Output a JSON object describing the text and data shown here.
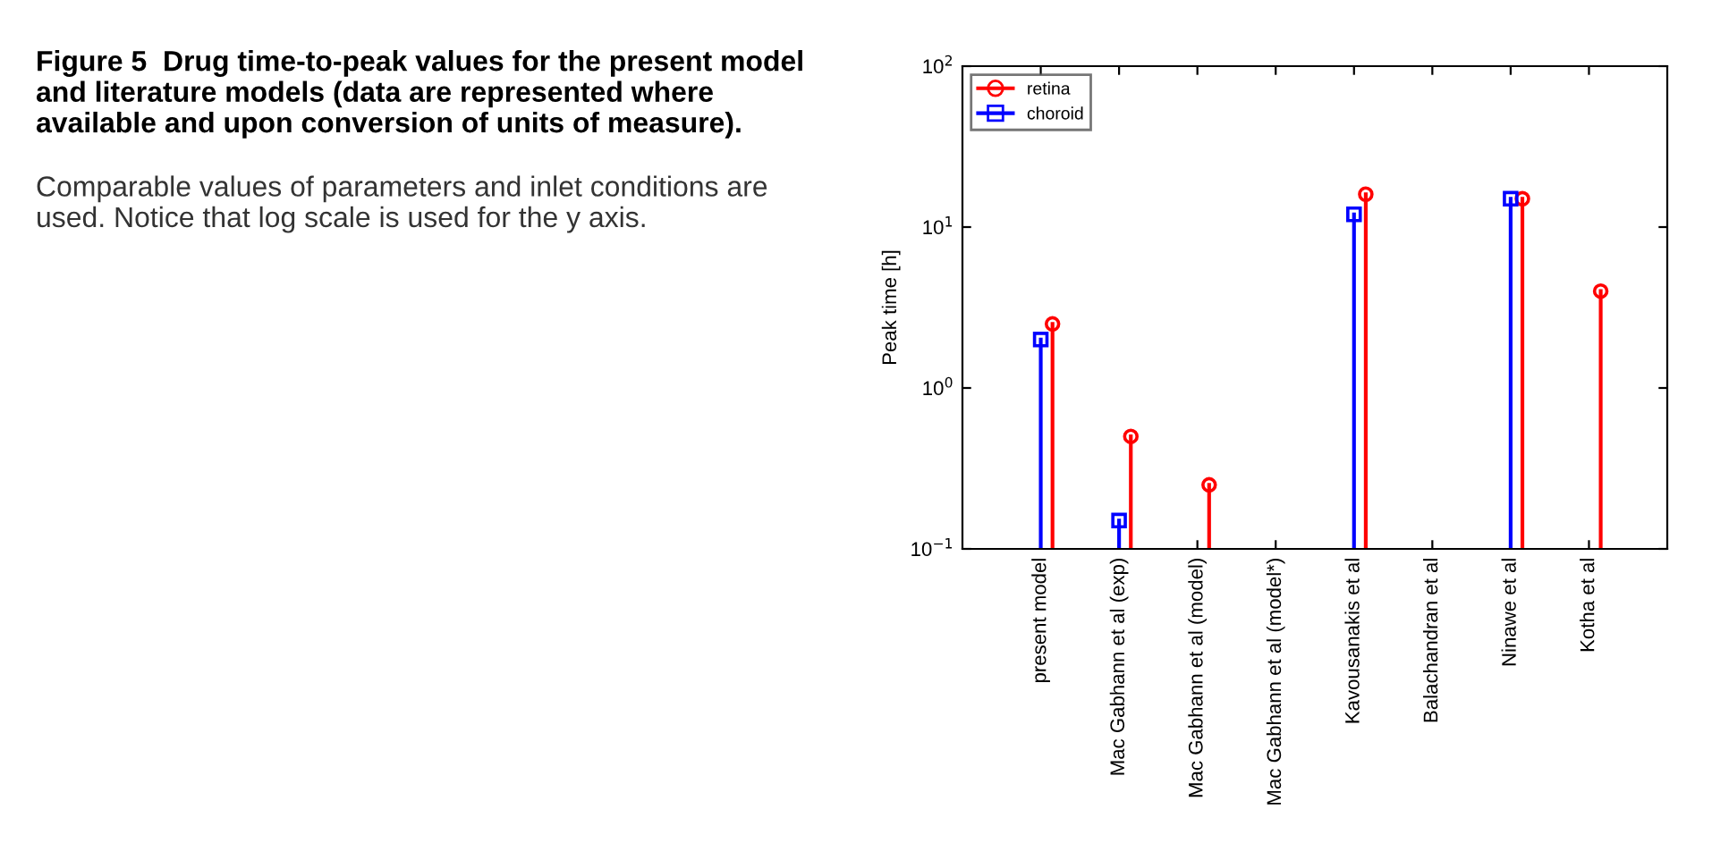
{
  "chart_data": {
    "type": "lollipop",
    "title": "Figure 5  Drug time-to-peak values for the present model and literature models (data are represented where available and upon conversion of units of measure).",
    "subtitle": "Comparable values of parameters and inlet conditions are used. Notice that log scale is used for the y axis.",
    "ylabel": "Peak time [h]",
    "categories": [
      "present model",
      "Mac Gabhann et al (exp)",
      "Mac Gabhann et al (model)",
      "Mac Gabhann et al (model*)",
      "Kavousanakis et al",
      "Balachandran et al",
      "Ninawe et al",
      "Kotha et al"
    ],
    "series": [
      {
        "name": "retina",
        "color": "#ff0000",
        "marker": "circle",
        "values": [
          2.5,
          0.5,
          0.25,
          null,
          16,
          null,
          15,
          4
        ]
      },
      {
        "name": "choroid",
        "color": "#0000ff",
        "marker": "square",
        "values": [
          2,
          0.15,
          null,
          null,
          12,
          null,
          15,
          null
        ]
      }
    ],
    "log": "y",
    "ylim": [
      0.1,
      100
    ],
    "yticks": [
      {
        "value": 0.1,
        "label": "10$^{−1}$"
      },
      {
        "value": 1,
        "label": "10$^{0}$"
      },
      {
        "value": 10,
        "label": "10$^{1}$"
      },
      {
        "value": 100,
        "label": "10$^{2}$"
      }
    ],
    "legend": "top left",
    "grid": false,
    "line_style": "solid"
  }
}
